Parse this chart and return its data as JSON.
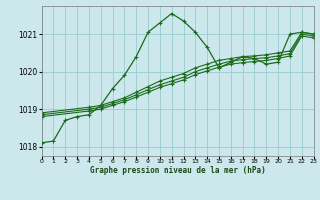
{
  "title": "Graphe pression niveau de la mer (hPa)",
  "bg_color": "#cce8ec",
  "grid_color": "#99cccc",
  "line_color": "#1a6b1a",
  "xlim": [
    0,
    23
  ],
  "ylim": [
    1017.75,
    1021.75
  ],
  "yticks": [
    1018,
    1019,
    1020,
    1021
  ],
  "xticks": [
    0,
    1,
    2,
    3,
    4,
    5,
    6,
    7,
    8,
    9,
    10,
    11,
    12,
    13,
    14,
    15,
    16,
    17,
    18,
    19,
    20,
    21,
    22,
    23
  ],
  "series": [
    {
      "x": [
        0,
        1,
        2,
        3,
        4,
        5,
        6,
        7,
        8,
        9,
        10,
        11,
        12,
        13,
        14,
        15,
        16,
        17,
        18,
        19,
        20,
        21,
        22,
        23
      ],
      "y": [
        1018.1,
        1018.15,
        1018.7,
        1018.8,
        1018.85,
        1019.1,
        1019.55,
        1019.9,
        1020.4,
        1021.05,
        1021.3,
        1021.55,
        1021.35,
        1021.05,
        1020.65,
        1020.1,
        1020.25,
        1020.4,
        1020.35,
        1020.2,
        1020.25,
        1021.0,
        1021.05,
        1021.0
      ]
    },
    {
      "x": [
        0,
        4,
        5,
        6,
        7,
        8,
        9,
        10,
        11,
        12,
        13,
        14,
        15,
        16,
        17,
        18,
        19,
        20,
        21,
        22,
        23
      ],
      "y": [
        1018.9,
        1019.05,
        1019.1,
        1019.2,
        1019.3,
        1019.45,
        1019.6,
        1019.75,
        1019.85,
        1019.95,
        1020.1,
        1020.2,
        1020.3,
        1020.35,
        1020.4,
        1020.42,
        1020.45,
        1020.5,
        1020.55,
        1021.05,
        1021.0
      ]
    },
    {
      "x": [
        0,
        4,
        5,
        6,
        7,
        8,
        9,
        10,
        11,
        12,
        13,
        14,
        15,
        16,
        17,
        18,
        19,
        20,
        21,
        22,
        23
      ],
      "y": [
        1018.85,
        1019.0,
        1019.05,
        1019.15,
        1019.25,
        1019.38,
        1019.52,
        1019.65,
        1019.75,
        1019.85,
        1020.0,
        1020.1,
        1020.2,
        1020.28,
        1020.32,
        1020.35,
        1020.37,
        1020.42,
        1020.48,
        1021.0,
        1020.95
      ]
    },
    {
      "x": [
        0,
        4,
        5,
        6,
        7,
        8,
        9,
        10,
        11,
        12,
        13,
        14,
        15,
        16,
        17,
        18,
        19,
        20,
        21,
        22,
        23
      ],
      "y": [
        1018.8,
        1018.95,
        1019.0,
        1019.1,
        1019.2,
        1019.32,
        1019.45,
        1019.58,
        1019.68,
        1019.78,
        1019.92,
        1020.02,
        1020.12,
        1020.2,
        1020.24,
        1020.27,
        1020.3,
        1020.35,
        1020.42,
        1020.95,
        1020.9
      ]
    }
  ]
}
